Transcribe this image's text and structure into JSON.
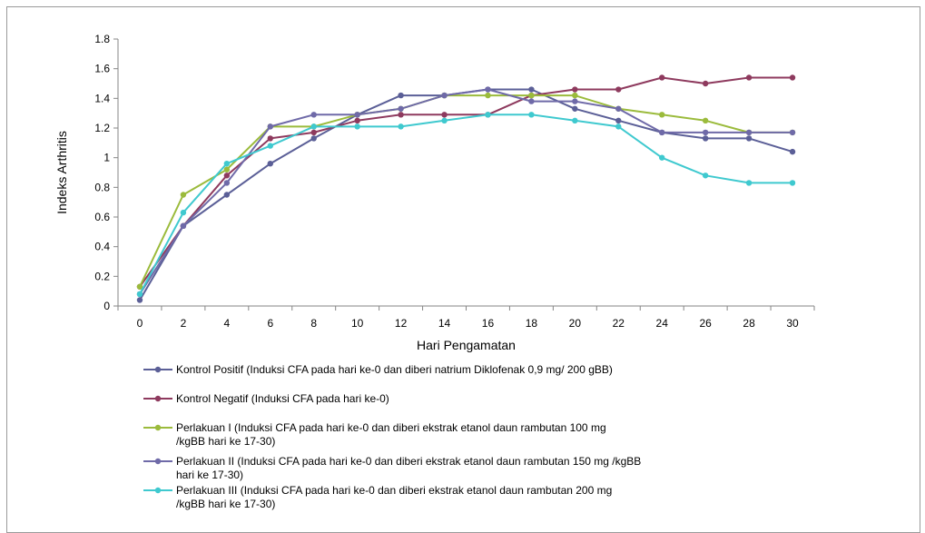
{
  "chart_data": {
    "type": "line",
    "title": "",
    "xlabel": "Hari Pengamatan",
    "ylabel": "Indeks   Arthritis",
    "x": [
      0,
      2,
      4,
      6,
      8,
      10,
      12,
      14,
      16,
      18,
      20,
      22,
      24,
      26,
      28,
      30
    ],
    "x_tick_labels": [
      "0",
      "2",
      "4",
      "6",
      "8",
      "10",
      "12",
      "14",
      "16",
      "18",
      "20",
      "22",
      "24",
      "26",
      "28",
      "30"
    ],
    "ylim": [
      0,
      1.8
    ],
    "y_tick_labels": [
      "0",
      "0.2",
      "0.4",
      "0.6",
      "0.8",
      "1",
      "1.2",
      "1.4",
      "1.6",
      "1.8"
    ],
    "grid": false,
    "legend_position": "bottom",
    "series": [
      {
        "name": "Kontrol Positif (Induksi CFA pada hari ke-0 dan diberi natrium Diklofenak 0,9 mg/ 200 gBB)",
        "legend_lines": [
          "Kontrol Positif (Induksi CFA pada hari ke-0 dan diberi natrium Diklofenak 0,9 mg/ 200 gBB)"
        ],
        "color": "#5b5f97",
        "values": [
          0.04,
          0.54,
          0.75,
          0.96,
          1.13,
          1.29,
          1.42,
          1.42,
          1.46,
          1.46,
          1.33,
          1.25,
          1.17,
          1.13,
          1.13,
          1.04
        ]
      },
      {
        "name": "Kontrol Negatif (Induksi CFA pada hari ke-0)",
        "legend_lines": [
          "Kontrol Negatif  (Induksi CFA pada hari ke-0)"
        ],
        "color": "#8e3a5e",
        "values": [
          0.13,
          0.54,
          0.88,
          1.13,
          1.17,
          1.25,
          1.29,
          1.29,
          1.29,
          1.42,
          1.46,
          1.46,
          1.54,
          1.5,
          1.54,
          1.54
        ]
      },
      {
        "name": "Perlakuan I (Induksi CFA pada hari ke-0 dan diberi ekstrak etanol daun rambutan 100 mg /kgBB hari ke 17-30)",
        "legend_lines": [
          "Perlakuan I  (Induksi CFA pada hari ke-0 dan diberi ekstrak etanol daun rambutan 100 mg",
          "/kgBB hari ke 17-30)"
        ],
        "color": "#9bbb3c",
        "values": [
          0.13,
          0.75,
          0.92,
          1.21,
          1.21,
          1.29,
          1.33,
          1.42,
          1.42,
          1.42,
          1.42,
          1.33,
          1.29,
          1.25,
          1.17,
          1.17
        ]
      },
      {
        "name": "Perlakuan II (Induksi CFA pada hari ke-0 dan diberi ekstrak etanol daun rambutan 150 mg /kgBB hari ke 17-30)",
        "legend_lines": [
          "Perlakuan II (Induksi CFA pada hari ke-0 dan diberi ekstrak etanol daun rambutan 150 mg /kgBB",
          "hari ke 17-30)"
        ],
        "color": "#6f6aa8",
        "values": [
          0.08,
          0.54,
          0.83,
          1.21,
          1.29,
          1.29,
          1.33,
          1.42,
          1.46,
          1.38,
          1.38,
          1.33,
          1.17,
          1.17,
          1.17,
          1.17
        ]
      },
      {
        "name": "Perlakuan III (Induksi CFA pada hari ke-0 dan diberi ekstrak etanol daun rambutan 200 mg /kgBB hari ke 17-30)",
        "legend_lines": [
          "Perlakuan III (Induksi CFA pada hari ke-0 dan diberi ekstrak etanol daun rambutan 200 mg",
          "/kgBB hari ke 17-30)"
        ],
        "color": "#3fc9cf",
        "values": [
          0.08,
          0.63,
          0.96,
          1.08,
          1.21,
          1.21,
          1.21,
          1.25,
          1.29,
          1.29,
          1.25,
          1.21,
          1.0,
          0.88,
          0.83,
          0.83
        ]
      }
    ]
  }
}
